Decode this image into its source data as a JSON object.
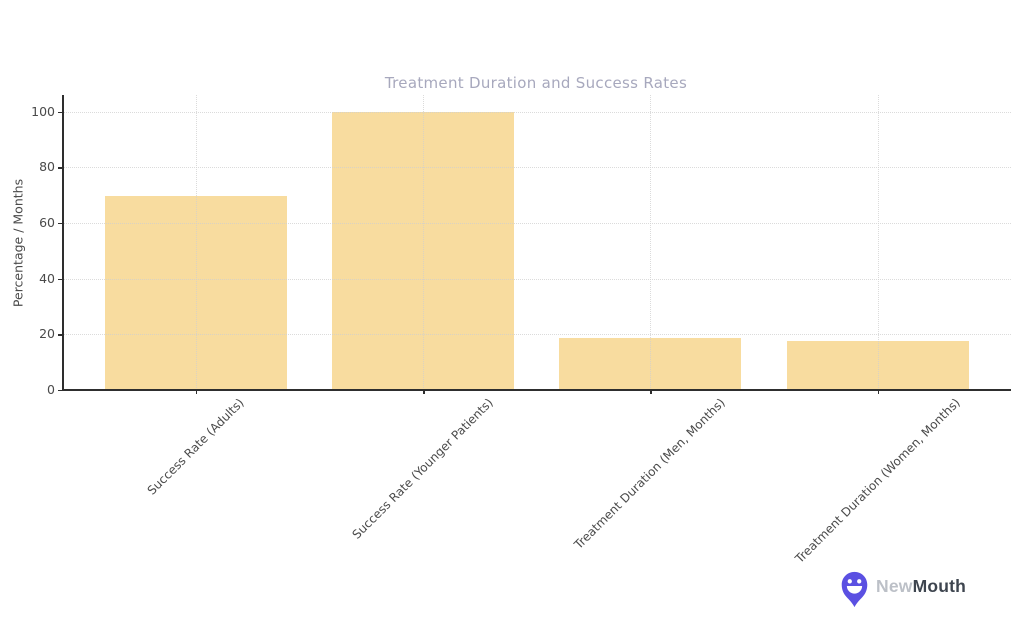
{
  "chart_data": {
    "type": "bar",
    "title": "Treatment Duration and Success Rates",
    "categories": [
      "Success Rate (Adults)",
      "Success Rate (Younger Patients)",
      "Treatment Duration (Men, Months)",
      "Treatment Duration (Women, Months)"
    ],
    "values": [
      69.5,
      100,
      18.5,
      17.5
    ],
    "xlabel": "",
    "ylabel": "Percentage / Months",
    "yticks": [
      0,
      20,
      40,
      60,
      80,
      100
    ],
    "ylim": [
      0,
      106
    ],
    "grid": "dotted, horizontal at y-ticks and vertical at category centers",
    "legend": "none",
    "bar_color": "#F8DC9F",
    "axis_color": "#2e2e2e",
    "grid_color": "#cfcfcf",
    "tick_label_color": "#4a4a4a",
    "title_color": "#A7A8BD"
  },
  "branding": {
    "name_part1": "New",
    "name_part2": "Mouth",
    "icon": "smiley-pin-icon",
    "icon_color": "#5B50E2",
    "name_part1_color": "#BCC0C7",
    "name_part2_color": "#3E454F"
  }
}
